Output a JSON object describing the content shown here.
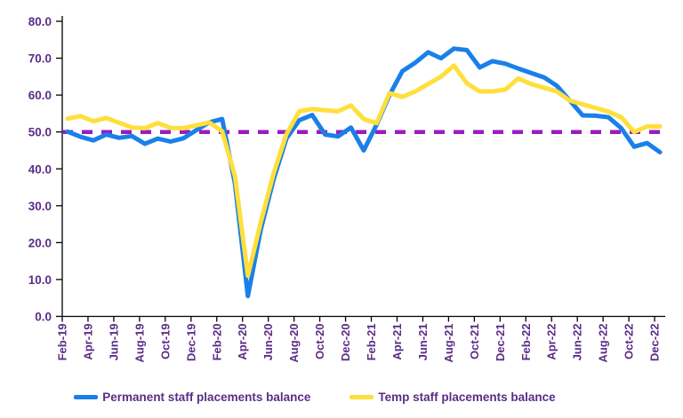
{
  "chart_data": {
    "type": "line",
    "title": "",
    "categories": [
      "Feb-19",
      "Mar-19",
      "Apr-19",
      "May-19",
      "Jun-19",
      "Jul-19",
      "Aug-19",
      "Sep-19",
      "Oct-19",
      "Nov-19",
      "Dec-19",
      "Jan-20",
      "Feb-20",
      "Mar-20",
      "Apr-20",
      "May-20",
      "Jun-20",
      "Jul-20",
      "Aug-20",
      "Sep-20",
      "Oct-20",
      "Nov-20",
      "Dec-20",
      "Jan-21",
      "Feb-21",
      "Mar-21",
      "Apr-21",
      "May-21",
      "Jun-21",
      "Jul-21",
      "Aug-21",
      "Sep-21",
      "Oct-21",
      "Nov-21",
      "Dec-21",
      "Jan-22",
      "Feb-22",
      "Mar-22",
      "Apr-22",
      "May-22",
      "Jun-22",
      "Jul-22",
      "Aug-22",
      "Sep-22",
      "Oct-22",
      "Nov-22",
      "Dec-22"
    ],
    "x_tick_every": 2,
    "series": [
      {
        "name": "Permanent staff placements balance",
        "color": "#1A80E8",
        "values": [
          50.1,
          48.7,
          47.7,
          49.3,
          48.4,
          48.9,
          46.8,
          48.2,
          47.4,
          48.3,
          50.5,
          52.6,
          53.5,
          36.0,
          5.5,
          23.5,
          37.2,
          48.3,
          53.2,
          54.6,
          49.3,
          48.8,
          51.2,
          45.0,
          52.0,
          60.0,
          66.5,
          68.8,
          71.6,
          70.0,
          72.6,
          72.2,
          67.5,
          69.2,
          68.5,
          67.2,
          66.0,
          64.8,
          62.5,
          58.5,
          54.5,
          54.4,
          54.0,
          51.0,
          46.0,
          47.0,
          44.5
        ]
      },
      {
        "name": "Temp staff placements balance",
        "color": "#FFDF3C",
        "values": [
          53.6,
          54.3,
          52.9,
          53.8,
          52.5,
          51.2,
          51.0,
          52.4,
          51.1,
          51.0,
          51.8,
          52.6,
          50.2,
          38.0,
          11.0,
          25.5,
          38.8,
          49.5,
          55.6,
          56.2,
          55.9,
          55.6,
          57.2,
          53.5,
          52.4,
          60.5,
          59.5,
          61.0,
          63.0,
          65.0,
          68.0,
          63.2,
          61.0,
          61.0,
          61.5,
          64.5,
          63.0,
          62.0,
          61.0,
          58.5,
          57.5,
          56.5,
          55.5,
          54.0,
          50.0,
          51.5,
          51.5
        ]
      }
    ],
    "reference_line": {
      "value": 50.0,
      "color": "#9A1BBE",
      "style": "dashed"
    },
    "ylim": [
      0,
      80
    ],
    "ytick_step": 10,
    "ytick_labels": [
      "0.0",
      "10.0",
      "20.0",
      "30.0",
      "40.0",
      "50.0",
      "60.0",
      "70.0",
      "80.0"
    ],
    "grid": "off",
    "legend_position": "bottom",
    "axis_label_color": "#5B2D86",
    "axis_line_color": "#000000"
  }
}
